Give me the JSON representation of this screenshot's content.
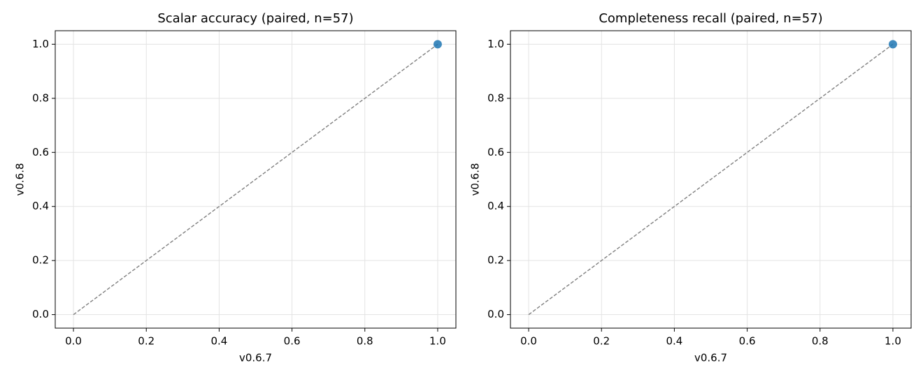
{
  "chart_data": [
    {
      "type": "scatter",
      "title": "Scalar accuracy (paired, n=57)",
      "x_label": "v0.6.7",
      "y_label": "v0.6.8",
      "series": [
        {
          "color": "#1f77b4",
          "x": [
            1.0
          ],
          "values": [
            1.0
          ]
        }
      ],
      "reference_line": {
        "x": [
          0,
          1
        ],
        "y": [
          0,
          1
        ],
        "color": "#808080"
      },
      "xlim": [
        -0.05,
        1.05
      ],
      "ylim": [
        -0.05,
        1.05
      ],
      "xticks": [
        {
          "value": 0,
          "label": "0.0"
        },
        {
          "value": 0.2,
          "label": "0.2"
        },
        {
          "value": 0.4,
          "label": "0.4"
        },
        {
          "value": 0.6,
          "label": "0.6"
        },
        {
          "value": 0.8,
          "label": "0.8"
        },
        {
          "value": 1,
          "label": "1.0"
        }
      ],
      "yticks": [
        {
          "value": 0,
          "label": "0.0"
        },
        {
          "value": 0.2,
          "label": "0.2"
        },
        {
          "value": 0.4,
          "label": "0.4"
        },
        {
          "value": 0.6,
          "label": "0.6"
        },
        {
          "value": 0.8,
          "label": "0.8"
        },
        {
          "value": 1,
          "label": "1.0"
        }
      ],
      "grid": true
    },
    {
      "type": "scatter",
      "title": "Completeness recall (paired, n=57)",
      "x_label": "v0.6.7",
      "y_label": "v0.6.8",
      "series": [
        {
          "color": "#1f77b4",
          "x": [
            1.0
          ],
          "values": [
            1.0
          ]
        }
      ],
      "reference_line": {
        "x": [
          0,
          1
        ],
        "y": [
          0,
          1
        ],
        "color": "#808080"
      },
      "xlim": [
        -0.05,
        1.05
      ],
      "ylim": [
        -0.05,
        1.05
      ],
      "xticks": [
        {
          "value": 0,
          "label": "0.0"
        },
        {
          "value": 0.2,
          "label": "0.2"
        },
        {
          "value": 0.4,
          "label": "0.4"
        },
        {
          "value": 0.6,
          "label": "0.6"
        },
        {
          "value": 0.8,
          "label": "0.8"
        },
        {
          "value": 1,
          "label": "1.0"
        }
      ],
      "yticks": [
        {
          "value": 0,
          "label": "0.0"
        },
        {
          "value": 0.2,
          "label": "0.2"
        },
        {
          "value": 0.4,
          "label": "0.4"
        },
        {
          "value": 0.6,
          "label": "0.6"
        },
        {
          "value": 0.8,
          "label": "0.8"
        },
        {
          "value": 1,
          "label": "1.0"
        }
      ],
      "grid": true
    }
  ]
}
